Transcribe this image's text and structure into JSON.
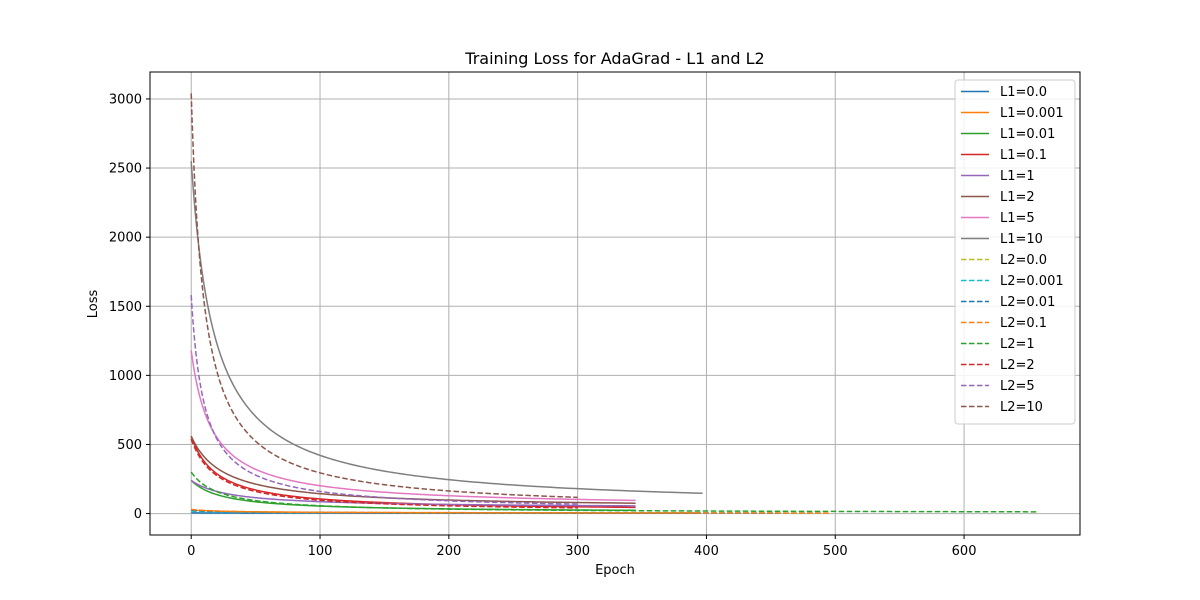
{
  "chart_data": {
    "type": "line",
    "title": "Training Loss for AdaGrad - L1 and L2",
    "xlabel": "Epoch",
    "ylabel": "Loss",
    "xlim": [
      -32,
      690
    ],
    "ylim": [
      -155,
      3195
    ],
    "xticks": [
      0,
      100,
      200,
      300,
      400,
      500,
      600
    ],
    "yticks": [
      0,
      500,
      1000,
      1500,
      2000,
      2500,
      3000
    ],
    "grid": true,
    "legend_position": "upper right",
    "series": [
      {
        "name": "L1=0.0",
        "color": "#1f77b4",
        "dash": "solid",
        "x_end": 395,
        "start": 5,
        "end": 2,
        "k": 50
      },
      {
        "name": "L1=0.001",
        "color": "#ff7f0e",
        "dash": "solid",
        "x_end": 395,
        "start": 25,
        "end": 3,
        "k": 40
      },
      {
        "name": "L1=0.01",
        "color": "#2ca02c",
        "dash": "solid",
        "x_end": 345,
        "start": 240,
        "end": 8,
        "k": 25
      },
      {
        "name": "L1=0.1",
        "color": "#d62728",
        "dash": "solid",
        "x_end": 345,
        "start": 560,
        "end": 15,
        "k": 20
      },
      {
        "name": "L1=1",
        "color": "#9467bd",
        "dash": "solid",
        "x_end": 345,
        "start": 240,
        "end": 40,
        "k": 30
      },
      {
        "name": "L1=2",
        "color": "#8c564b",
        "dash": "solid",
        "x_end": 345,
        "start": 560,
        "end": 40,
        "k": 25
      },
      {
        "name": "L1=5",
        "color": "#e377c2",
        "dash": "solid",
        "x_end": 345,
        "start": 1180,
        "end": 45,
        "k": 16
      },
      {
        "name": "L1=10",
        "color": "#7f7f7f",
        "dash": "solid",
        "x_end": 397,
        "start": 2550,
        "end": 38,
        "k": 18
      },
      {
        "name": "L2=0.0",
        "color": "#bcbd22",
        "dash": "dashed",
        "x_end": 490,
        "start": 20,
        "end": 2,
        "k": 40
      },
      {
        "name": "L2=0.001",
        "color": "#17becf",
        "dash": "dashed",
        "x_end": 490,
        "start": 18,
        "end": 2,
        "k": 40
      },
      {
        "name": "L2=0.01",
        "color": "#1f77b4",
        "dash": "dashed",
        "x_end": 455,
        "start": 25,
        "end": 2,
        "k": 35
      },
      {
        "name": "L2=0.1",
        "color": "#ff7f0e",
        "dash": "dashed",
        "x_end": 495,
        "start": 30,
        "end": 2,
        "k": 30
      },
      {
        "name": "L2=1",
        "color": "#2ca02c",
        "dash": "dashed",
        "x_end": 657,
        "start": 300,
        "end": 3,
        "k": 22
      },
      {
        "name": "L2=2",
        "color": "#d62728",
        "dash": "dashed",
        "x_end": 300,
        "start": 540,
        "end": 8,
        "k": 20
      },
      {
        "name": "L2=5",
        "color": "#9467bd",
        "dash": "dashed",
        "x_end": 300,
        "start": 1580,
        "end": 18,
        "k": 10
      },
      {
        "name": "L2=10",
        "color": "#8c564b",
        "dash": "dashed",
        "x_end": 300,
        "start": 3040,
        "end": 20,
        "k": 10
      }
    ]
  }
}
